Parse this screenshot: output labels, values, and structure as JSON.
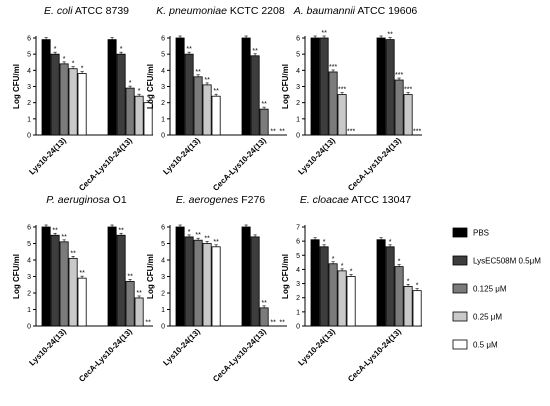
{
  "chart_data": {
    "type": "bar",
    "layout": "2x3 grid of grouped bar charts with shared legend",
    "legend": {
      "placement": "right",
      "entries": [
        {
          "label": "PBS",
          "color": "#000000"
        },
        {
          "label": "LysEC508M 0.5μM",
          "color": "#3d3d3d"
        },
        {
          "label": "0.125 μM",
          "color": "#7b7b7b"
        },
        {
          "label": "0.25 μM",
          "color": "#c9c9c9"
        },
        {
          "label": "0.5 μM",
          "color": "#ffffff"
        }
      ]
    },
    "panels": [
      {
        "title_species": "E. coli",
        "title_strain": "ATCC 8739",
        "ylabel": "Log CFU/ml",
        "ylim": [
          0,
          6
        ],
        "yticks": [
          "0",
          "1",
          "2",
          "3",
          "4",
          "5",
          "6"
        ],
        "categories": [
          "Lys10-24(13)",
          "CecA-Lys10-24(13)"
        ],
        "groups": [
          {
            "values": [
              5.9,
              5.0,
              4.4,
              4.1,
              3.8
            ],
            "sig": [
              "",
              "*",
              "*",
              "*",
              "*"
            ]
          },
          {
            "values": [
              5.9,
              5.0,
              2.9,
              2.4,
              2.0
            ],
            "sig": [
              "",
              "*",
              "*",
              "*",
              "*"
            ]
          }
        ]
      },
      {
        "title_species": "K. pneumoniae",
        "title_strain": "KCTC 2208",
        "ylabel": "Log CFU/ml",
        "ylim": [
          0,
          6
        ],
        "yticks": [
          "0",
          "1",
          "2",
          "3",
          "4",
          "5",
          "6"
        ],
        "categories": [
          "Lys10-24(13)",
          "CecA-Lys10-24(13)"
        ],
        "groups": [
          {
            "values": [
              6.0,
              5.0,
              3.6,
              3.1,
              2.4
            ],
            "sig": [
              "",
              "**",
              "**",
              "**",
              "**"
            ]
          },
          {
            "values": [
              6.0,
              4.9,
              1.6,
              0,
              0
            ],
            "sig": [
              "",
              "**",
              "**",
              "**",
              "**"
            ]
          }
        ]
      },
      {
        "title_species": "A. baumannii",
        "title_strain": "ATCC 19606",
        "ylabel": "Log CFU/ml",
        "ylim": [
          0,
          6
        ],
        "yticks": [
          "0",
          "1",
          "2",
          "3",
          "4",
          "5",
          "6"
        ],
        "categories": [
          "Lys10-24(13)",
          "CecA-Lys10-24(13)"
        ],
        "groups": [
          {
            "values": [
              6.0,
              6.0,
              3.9,
              2.5,
              0
            ],
            "sig": [
              "",
              "**",
              "***",
              "***",
              "***"
            ]
          },
          {
            "values": [
              6.0,
              5.9,
              3.4,
              2.5,
              0
            ],
            "sig": [
              "",
              "**",
              "***",
              "***",
              "***"
            ]
          }
        ]
      },
      {
        "title_species": "P. aeruginosa",
        "title_strain": "O1",
        "ylabel": "Log CFU/ml",
        "ylim": [
          0,
          6
        ],
        "yticks": [
          "0",
          "1",
          "2",
          "3",
          "4",
          "5",
          "6"
        ],
        "categories": [
          "Lys10-24(13)",
          "CecA-Lys10-24(13)"
        ],
        "groups": [
          {
            "values": [
              6.0,
              5.5,
              5.1,
              4.1,
              2.9
            ],
            "sig": [
              "",
              "**",
              "**",
              "**",
              "**"
            ]
          },
          {
            "values": [
              6.0,
              5.5,
              2.7,
              1.7,
              0
            ],
            "sig": [
              "",
              "**",
              "**",
              "**",
              "**"
            ]
          }
        ]
      },
      {
        "title_species": "E. aerogenes",
        "title_strain": "F276",
        "ylabel": "Log CFU/ml",
        "ylim": [
          0,
          6
        ],
        "yticks": [
          "0",
          "1",
          "2",
          "3",
          "4",
          "5",
          "6"
        ],
        "categories": [
          "Lys10-24(13)",
          "CecA-Lys10-24(13)"
        ],
        "groups": [
          {
            "values": [
              6.0,
              5.4,
              5.2,
              5.0,
              4.8
            ],
            "sig": [
              "",
              "*",
              "**",
              "**",
              "**"
            ]
          },
          {
            "values": [
              6.0,
              5.4,
              1.1,
              0,
              0
            ],
            "sig": [
              "",
              "",
              "**",
              "**",
              "**"
            ]
          }
        ]
      },
      {
        "title_species": "E. cloacae",
        "title_strain": "ATCC 13047",
        "ylabel": "Log CFU/ml",
        "ylim": [
          0,
          7
        ],
        "yticks": [
          "0",
          "1",
          "2",
          "3",
          "4",
          "5",
          "6",
          "7"
        ],
        "categories": [
          "Lys10-24(13)",
          "CecA-Lys10-24(13)"
        ],
        "groups": [
          {
            "values": [
              6.1,
              5.6,
              4.4,
              3.9,
              3.5
            ],
            "sig": [
              "",
              "*",
              "*",
              "*",
              "*"
            ]
          },
          {
            "values": [
              6.1,
              5.6,
              4.2,
              2.8,
              2.5
            ],
            "sig": [
              "",
              "*",
              "*",
              "*",
              "*"
            ]
          }
        ]
      }
    ]
  }
}
